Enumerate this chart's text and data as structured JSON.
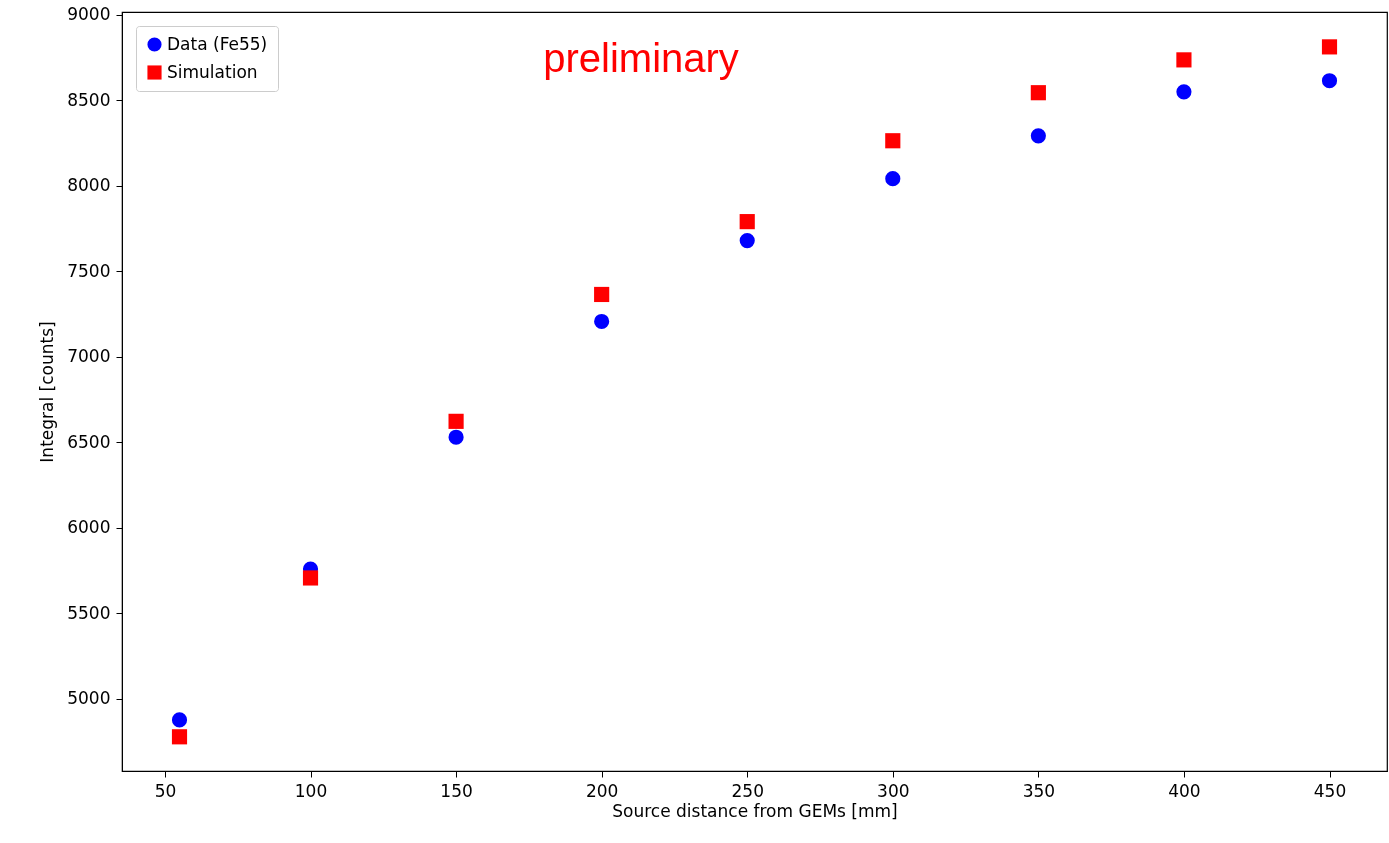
{
  "chart_data": {
    "type": "scatter",
    "xlabel": "Source distance from GEMs [mm]",
    "ylabel": "Integral [counts]",
    "annotations": [
      "preliminary"
    ],
    "xlim": [
      35.25,
      469.75
    ],
    "xticks": [
      50,
      100,
      150,
      200,
      250,
      300,
      350,
      400,
      450
    ],
    "ylim": [
      4578,
      9017
    ],
    "yticks": [
      5000,
      5500,
      6000,
      6500,
      7000,
      7500,
      8000,
      8500,
      9000
    ],
    "x": [
      55,
      100,
      150,
      200,
      250,
      300,
      350,
      400,
      450
    ],
    "legend": "top left",
    "grid": false,
    "series": [
      {
        "name": "Data (Fe55)",
        "color": "#0000ff",
        "marker": "circle",
        "values": [
          4877,
          5759,
          6530,
          7207,
          7680,
          8042,
          8293,
          8550,
          8615
        ]
      },
      {
        "name": "Simulation",
        "color": "#ff0000",
        "marker": "square",
        "values": [
          4778,
          5707,
          6623,
          7365,
          7791,
          8264,
          8545,
          8737,
          8813
        ]
      }
    ]
  }
}
